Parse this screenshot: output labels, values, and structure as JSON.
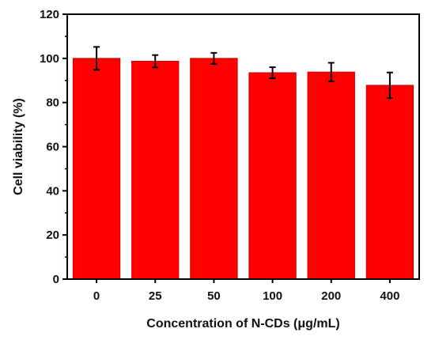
{
  "chart_data": {
    "type": "bar",
    "title": "",
    "xlabel": "Concentration of N-CDs (μg/mL)",
    "ylabel": "Cell viability (%)",
    "categories": [
      "0",
      "25",
      "50",
      "100",
      "200",
      "400"
    ],
    "values": [
      100.0,
      98.7,
      100.0,
      93.5,
      93.8,
      87.8
    ],
    "errors": [
      5.2,
      2.8,
      2.5,
      2.5,
      4.2,
      5.8
    ],
    "ylim": [
      0,
      120
    ],
    "yticks": [
      0,
      20,
      40,
      60,
      80,
      100,
      120
    ],
    "grid": false,
    "legend": "none",
    "colors": {
      "bar_fill": "#ff0000",
      "bar_edge": "#cc0000",
      "error_bar": "#000000",
      "axis": "#000000"
    }
  }
}
